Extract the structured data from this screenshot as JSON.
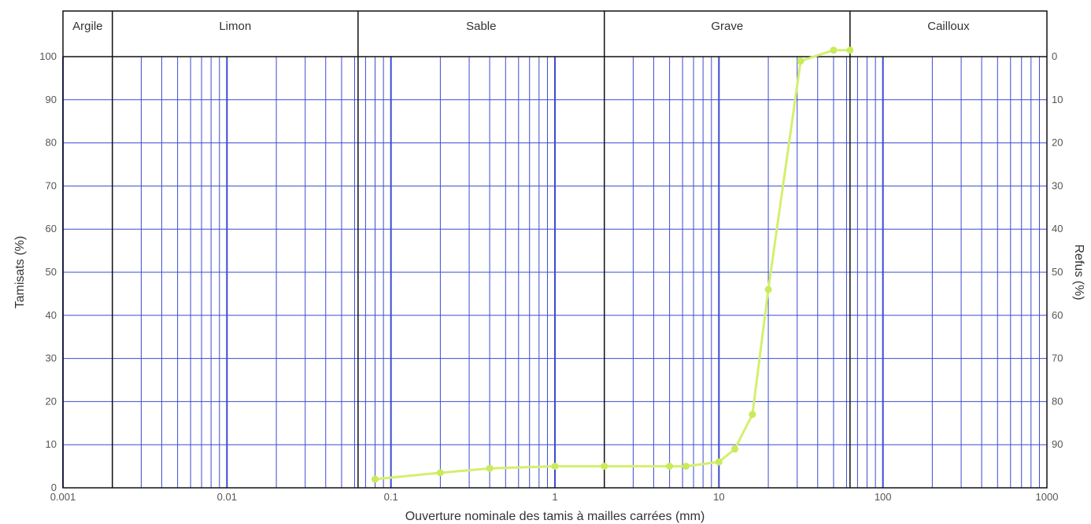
{
  "chart_data": {
    "type": "line",
    "xlabel": "Ouverture nominale des tamis à mailles carrées (mm)",
    "ylabel": "Tamisats (%)",
    "y2label": "Refus (%)",
    "xscale": "log",
    "xlim": [
      0.001,
      1000
    ],
    "ylim": [
      0,
      100
    ],
    "y2lim": [
      0,
      100
    ],
    "y2_reversed": true,
    "grid": true,
    "x_ticks": [
      "0.001",
      "0.01",
      "0.1",
      "1",
      "10",
      "100",
      "1000"
    ],
    "y_ticks": [
      "0",
      "10",
      "20",
      "30",
      "40",
      "50",
      "60",
      "70",
      "80",
      "90",
      "100"
    ],
    "y2_ticks": [
      "0",
      "10",
      "20",
      "30",
      "40",
      "50",
      "60",
      "70",
      "80",
      "90"
    ],
    "soil_classes": [
      {
        "label": "Argile",
        "from": 0.001,
        "to": 0.002
      },
      {
        "label": "Limon",
        "from": 0.002,
        "to": 0.063
      },
      {
        "label": "Sable",
        "from": 0.063,
        "to": 2
      },
      {
        "label": "Grave",
        "from": 2,
        "to": 63
      },
      {
        "label": "Cailloux",
        "from": 63,
        "to": 1000
      }
    ],
    "series": [
      {
        "color": "#d4ef6e",
        "x": [
          0.08,
          0.2,
          0.4,
          1,
          2,
          5,
          6.3,
          10,
          12.5,
          16,
          20,
          31.5,
          50,
          63
        ],
        "y": [
          2,
          3.5,
          4.5,
          5,
          5,
          5,
          5,
          6,
          9,
          17,
          46,
          99,
          101.5,
          101.5
        ]
      }
    ],
    "colors": {
      "grid": "#3a4bd0",
      "frame": "#111111",
      "curve": "#d4ef6e",
      "points": "#c9ea5a"
    }
  }
}
